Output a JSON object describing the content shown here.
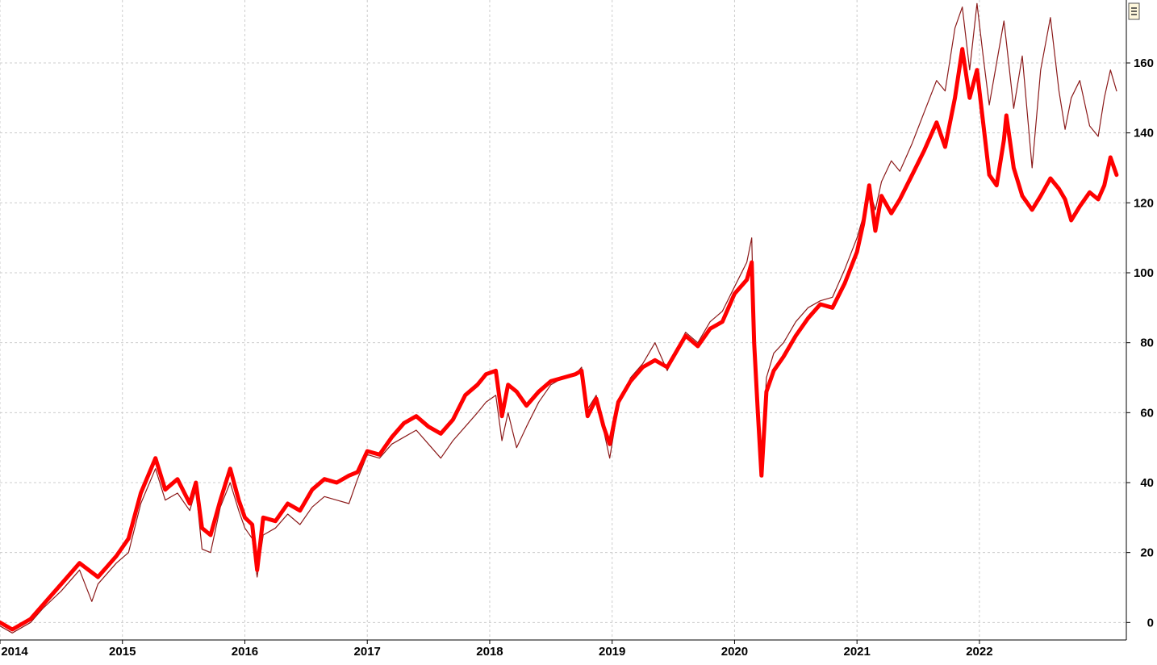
{
  "chart_data": {
    "type": "line",
    "title": "",
    "xlabel": "",
    "ylabel": "",
    "x_ticks": [
      "2014",
      "2015",
      "2016",
      "2017",
      "2018",
      "2019",
      "2020",
      "2021",
      "2022"
    ],
    "y_ticks": [
      "0",
      "20",
      "40",
      "60",
      "80",
      "100",
      "120",
      "140",
      "160"
    ],
    "xlim": [
      2014.0,
      2023.2
    ],
    "ylim": [
      -5,
      178
    ],
    "grid": true,
    "legend": "none",
    "series": [
      {
        "color": "#ff0000",
        "style": "thick",
        "points": [
          [
            2014.0,
            0
          ],
          [
            2014.1,
            -2
          ],
          [
            2014.25,
            1
          ],
          [
            2014.35,
            5
          ],
          [
            2014.5,
            11
          ],
          [
            2014.65,
            17
          ],
          [
            2014.8,
            13
          ],
          [
            2014.95,
            19
          ],
          [
            2015.05,
            24
          ],
          [
            2015.15,
            37
          ],
          [
            2015.27,
            47
          ],
          [
            2015.35,
            38
          ],
          [
            2015.45,
            41
          ],
          [
            2015.55,
            34
          ],
          [
            2015.6,
            40
          ],
          [
            2015.65,
            27
          ],
          [
            2015.72,
            25
          ],
          [
            2015.8,
            35
          ],
          [
            2015.88,
            44
          ],
          [
            2015.95,
            35
          ],
          [
            2016.0,
            30
          ],
          [
            2016.06,
            28
          ],
          [
            2016.1,
            15
          ],
          [
            2016.15,
            30
          ],
          [
            2016.25,
            29
          ],
          [
            2016.35,
            34
          ],
          [
            2016.45,
            32
          ],
          [
            2016.55,
            38
          ],
          [
            2016.65,
            41
          ],
          [
            2016.75,
            40
          ],
          [
            2016.85,
            42
          ],
          [
            2016.92,
            43
          ],
          [
            2017.0,
            49
          ],
          [
            2017.1,
            48
          ],
          [
            2017.2,
            53
          ],
          [
            2017.3,
            57
          ],
          [
            2017.4,
            59
          ],
          [
            2017.5,
            56
          ],
          [
            2017.6,
            54
          ],
          [
            2017.7,
            58
          ],
          [
            2017.8,
            65
          ],
          [
            2017.9,
            68
          ],
          [
            2017.97,
            71
          ],
          [
            2018.05,
            72
          ],
          [
            2018.1,
            59
          ],
          [
            2018.15,
            68
          ],
          [
            2018.22,
            66
          ],
          [
            2018.3,
            62
          ],
          [
            2018.4,
            66
          ],
          [
            2018.5,
            69
          ],
          [
            2018.6,
            70
          ],
          [
            2018.7,
            71
          ],
          [
            2018.75,
            72
          ],
          [
            2018.8,
            59
          ],
          [
            2018.87,
            64
          ],
          [
            2018.93,
            56
          ],
          [
            2018.98,
            51
          ],
          [
            2019.05,
            63
          ],
          [
            2019.15,
            69
          ],
          [
            2019.25,
            73
          ],
          [
            2019.35,
            75
          ],
          [
            2019.45,
            73
          ],
          [
            2019.5,
            76
          ],
          [
            2019.6,
            82
          ],
          [
            2019.7,
            79
          ],
          [
            2019.8,
            84
          ],
          [
            2019.9,
            86
          ],
          [
            2020.0,
            94
          ],
          [
            2020.1,
            98
          ],
          [
            2020.14,
            103
          ],
          [
            2020.16,
            80
          ],
          [
            2020.19,
            60
          ],
          [
            2020.22,
            42
          ],
          [
            2020.26,
            66
          ],
          [
            2020.32,
            72
          ],
          [
            2020.4,
            76
          ],
          [
            2020.5,
            82
          ],
          [
            2020.6,
            87
          ],
          [
            2020.7,
            91
          ],
          [
            2020.8,
            90
          ],
          [
            2020.9,
            97
          ],
          [
            2021.0,
            106
          ],
          [
            2021.05,
            114
          ],
          [
            2021.1,
            125
          ],
          [
            2021.15,
            112
          ],
          [
            2021.2,
            122
          ],
          [
            2021.28,
            117
          ],
          [
            2021.35,
            121
          ],
          [
            2021.45,
            128
          ],
          [
            2021.55,
            135
          ],
          [
            2021.65,
            143
          ],
          [
            2021.72,
            136
          ],
          [
            2021.8,
            150
          ],
          [
            2021.86,
            164
          ],
          [
            2021.92,
            150
          ],
          [
            2021.98,
            158
          ],
          [
            2022.03,
            143
          ],
          [
            2022.08,
            128
          ],
          [
            2022.14,
            125
          ],
          [
            2022.2,
            138
          ],
          [
            2022.22,
            145
          ],
          [
            2022.28,
            130
          ],
          [
            2022.35,
            122
          ],
          [
            2022.43,
            118
          ],
          [
            2022.5,
            122
          ],
          [
            2022.58,
            127
          ],
          [
            2022.65,
            124
          ],
          [
            2022.7,
            121
          ],
          [
            2022.75,
            115
          ],
          [
            2022.82,
            119
          ],
          [
            2022.9,
            123
          ],
          [
            2022.97,
            121
          ],
          [
            2023.02,
            125
          ],
          [
            2023.07,
            133
          ],
          [
            2023.12,
            128
          ]
        ]
      },
      {
        "color": "#8b1a1a",
        "style": "thin",
        "points": [
          [
            2014.0,
            -1
          ],
          [
            2014.1,
            -3
          ],
          [
            2014.25,
            0
          ],
          [
            2014.35,
            4
          ],
          [
            2014.5,
            9
          ],
          [
            2014.65,
            15
          ],
          [
            2014.75,
            6
          ],
          [
            2014.8,
            11
          ],
          [
            2014.95,
            17
          ],
          [
            2015.05,
            20
          ],
          [
            2015.15,
            34
          ],
          [
            2015.27,
            44
          ],
          [
            2015.35,
            35
          ],
          [
            2015.45,
            37
          ],
          [
            2015.55,
            32
          ],
          [
            2015.6,
            38
          ],
          [
            2015.65,
            21
          ],
          [
            2015.72,
            20
          ],
          [
            2015.8,
            33
          ],
          [
            2015.88,
            40
          ],
          [
            2015.95,
            32
          ],
          [
            2016.0,
            27
          ],
          [
            2016.06,
            24
          ],
          [
            2016.1,
            13
          ],
          [
            2016.15,
            25
          ],
          [
            2016.25,
            27
          ],
          [
            2016.35,
            31
          ],
          [
            2016.45,
            28
          ],
          [
            2016.55,
            33
          ],
          [
            2016.65,
            36
          ],
          [
            2016.75,
            35
          ],
          [
            2016.85,
            34
          ],
          [
            2016.92,
            41
          ],
          [
            2017.0,
            48
          ],
          [
            2017.1,
            47
          ],
          [
            2017.2,
            51
          ],
          [
            2017.3,
            53
          ],
          [
            2017.4,
            55
          ],
          [
            2017.5,
            51
          ],
          [
            2017.6,
            47
          ],
          [
            2017.7,
            52
          ],
          [
            2017.8,
            56
          ],
          [
            2017.9,
            60
          ],
          [
            2017.97,
            63
          ],
          [
            2018.05,
            65
          ],
          [
            2018.1,
            52
          ],
          [
            2018.15,
            60
          ],
          [
            2018.22,
            50
          ],
          [
            2018.3,
            56
          ],
          [
            2018.4,
            63
          ],
          [
            2018.5,
            68
          ],
          [
            2018.6,
            70
          ],
          [
            2018.7,
            71
          ],
          [
            2018.75,
            73
          ],
          [
            2018.8,
            61
          ],
          [
            2018.87,
            65
          ],
          [
            2018.93,
            55
          ],
          [
            2018.98,
            47
          ],
          [
            2019.05,
            62
          ],
          [
            2019.15,
            70
          ],
          [
            2019.25,
            74
          ],
          [
            2019.35,
            80
          ],
          [
            2019.45,
            72
          ],
          [
            2019.5,
            76
          ],
          [
            2019.6,
            83
          ],
          [
            2019.7,
            80
          ],
          [
            2019.8,
            86
          ],
          [
            2019.9,
            89
          ],
          [
            2020.0,
            96
          ],
          [
            2020.1,
            103
          ],
          [
            2020.14,
            110
          ],
          [
            2020.16,
            82
          ],
          [
            2020.19,
            62
          ],
          [
            2020.22,
            44
          ],
          [
            2020.26,
            70
          ],
          [
            2020.32,
            77
          ],
          [
            2020.4,
            80
          ],
          [
            2020.5,
            86
          ],
          [
            2020.6,
            90
          ],
          [
            2020.7,
            92
          ],
          [
            2020.8,
            93
          ],
          [
            2020.9,
            101
          ],
          [
            2021.0,
            110
          ],
          [
            2021.05,
            116
          ],
          [
            2021.1,
            124
          ],
          [
            2021.15,
            118
          ],
          [
            2021.2,
            126
          ],
          [
            2021.28,
            132
          ],
          [
            2021.35,
            129
          ],
          [
            2021.45,
            137
          ],
          [
            2021.55,
            146
          ],
          [
            2021.65,
            155
          ],
          [
            2021.72,
            152
          ],
          [
            2021.8,
            170
          ],
          [
            2021.86,
            176
          ],
          [
            2021.92,
            158
          ],
          [
            2021.98,
            177
          ],
          [
            2022.03,
            162
          ],
          [
            2022.08,
            148
          ],
          [
            2022.14,
            160
          ],
          [
            2022.2,
            172
          ],
          [
            2022.22,
            166
          ],
          [
            2022.28,
            147
          ],
          [
            2022.35,
            162
          ],
          [
            2022.43,
            130
          ],
          [
            2022.5,
            158
          ],
          [
            2022.58,
            173
          ],
          [
            2022.65,
            152
          ],
          [
            2022.7,
            141
          ],
          [
            2022.75,
            150
          ],
          [
            2022.82,
            155
          ],
          [
            2022.9,
            142
          ],
          [
            2022.97,
            139
          ],
          [
            2023.02,
            150
          ],
          [
            2023.07,
            158
          ],
          [
            2023.12,
            152
          ]
        ]
      }
    ]
  },
  "chrome": {
    "menu_icon": "menu-icon",
    "grid_color": "#cccccc"
  }
}
